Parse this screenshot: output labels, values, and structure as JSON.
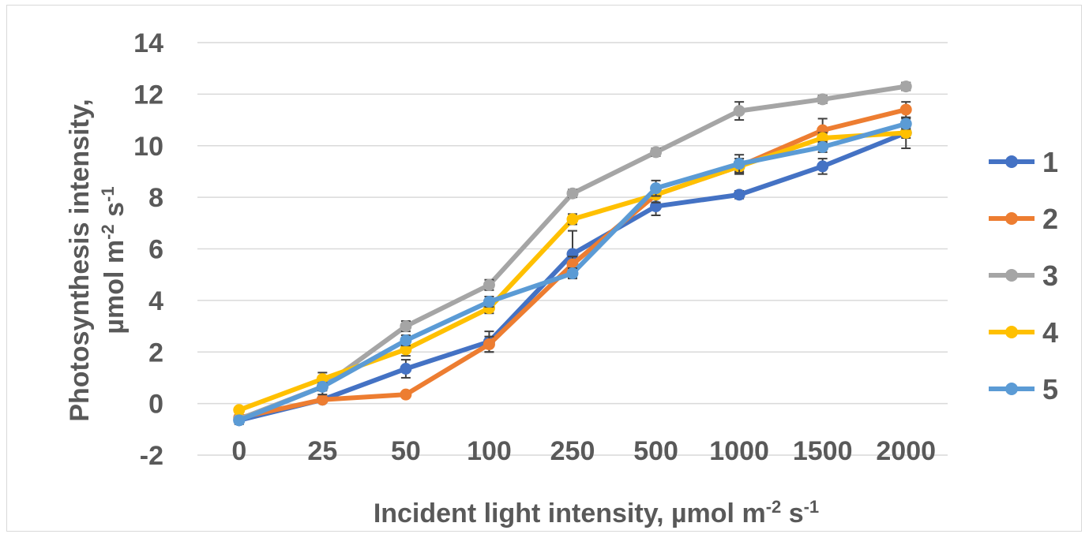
{
  "chart_data": {
    "type": "line",
    "categories": [
      "0",
      "25",
      "50",
      "100",
      "250",
      "500",
      "1000",
      "1500",
      "2000"
    ],
    "y_ticks": [
      "-2",
      "0",
      "2",
      "4",
      "6",
      "8",
      "10",
      "12",
      "14"
    ],
    "ylim": [
      -2,
      14
    ],
    "ylabel_line1": "Photosynthesis intensity,",
    "ylabel_line2_prefix": "µmol m",
    "ylabel_line2_exp1": "-2",
    "ylabel_line2_mid": " s",
    "ylabel_line2_exp2": "-1",
    "xlabel_prefix": "Incident light intensity, µmol m",
    "xlabel_exp1": "-2",
    "xlabel_mid": " s",
    "xlabel_exp2": "-1",
    "grid": true,
    "legend_position": "right",
    "error_bars": true,
    "series": [
      {
        "name": "1",
        "color": "#4472c4",
        "values": [
          -0.65,
          0.15,
          1.35,
          2.4,
          5.8,
          7.65,
          8.1,
          9.2,
          10.5
        ],
        "errors": [
          0.15,
          0.1,
          0.35,
          0.4,
          0.9,
          0.35,
          0.15,
          0.3,
          0.6
        ]
      },
      {
        "name": "2",
        "color": "#ed7d31",
        "values": [
          -0.55,
          0.15,
          0.35,
          2.3,
          5.4,
          8.1,
          9.2,
          10.6,
          11.4
        ],
        "errors": [
          0.1,
          0.1,
          0.1,
          0.3,
          0.3,
          0.3,
          0.2,
          0.45,
          0.3
        ]
      },
      {
        "name": "3",
        "color": "#a5a5a5",
        "values": [
          -0.6,
          0.65,
          3.0,
          4.6,
          8.15,
          9.75,
          11.35,
          11.8,
          12.3
        ],
        "errors": [
          0.1,
          0.3,
          0.2,
          0.2,
          0.15,
          0.15,
          0.35,
          0.15,
          0.15
        ]
      },
      {
        "name": "4",
        "color": "#ffc000",
        "values": [
          -0.25,
          0.95,
          2.1,
          3.7,
          7.15,
          8.1,
          9.2,
          10.3,
          10.5
        ],
        "errors": [
          0.1,
          0.25,
          0.25,
          0.2,
          0.2,
          0.3,
          0.3,
          0.2,
          0.2
        ]
      },
      {
        "name": "5",
        "color": "#5b9bd5",
        "values": [
          -0.65,
          0.65,
          2.45,
          3.95,
          5.05,
          8.35,
          9.3,
          9.95,
          10.85
        ],
        "errors": [
          0.1,
          0.15,
          0.2,
          0.2,
          0.2,
          0.3,
          0.35,
          0.2,
          0.2
        ]
      }
    ]
  }
}
